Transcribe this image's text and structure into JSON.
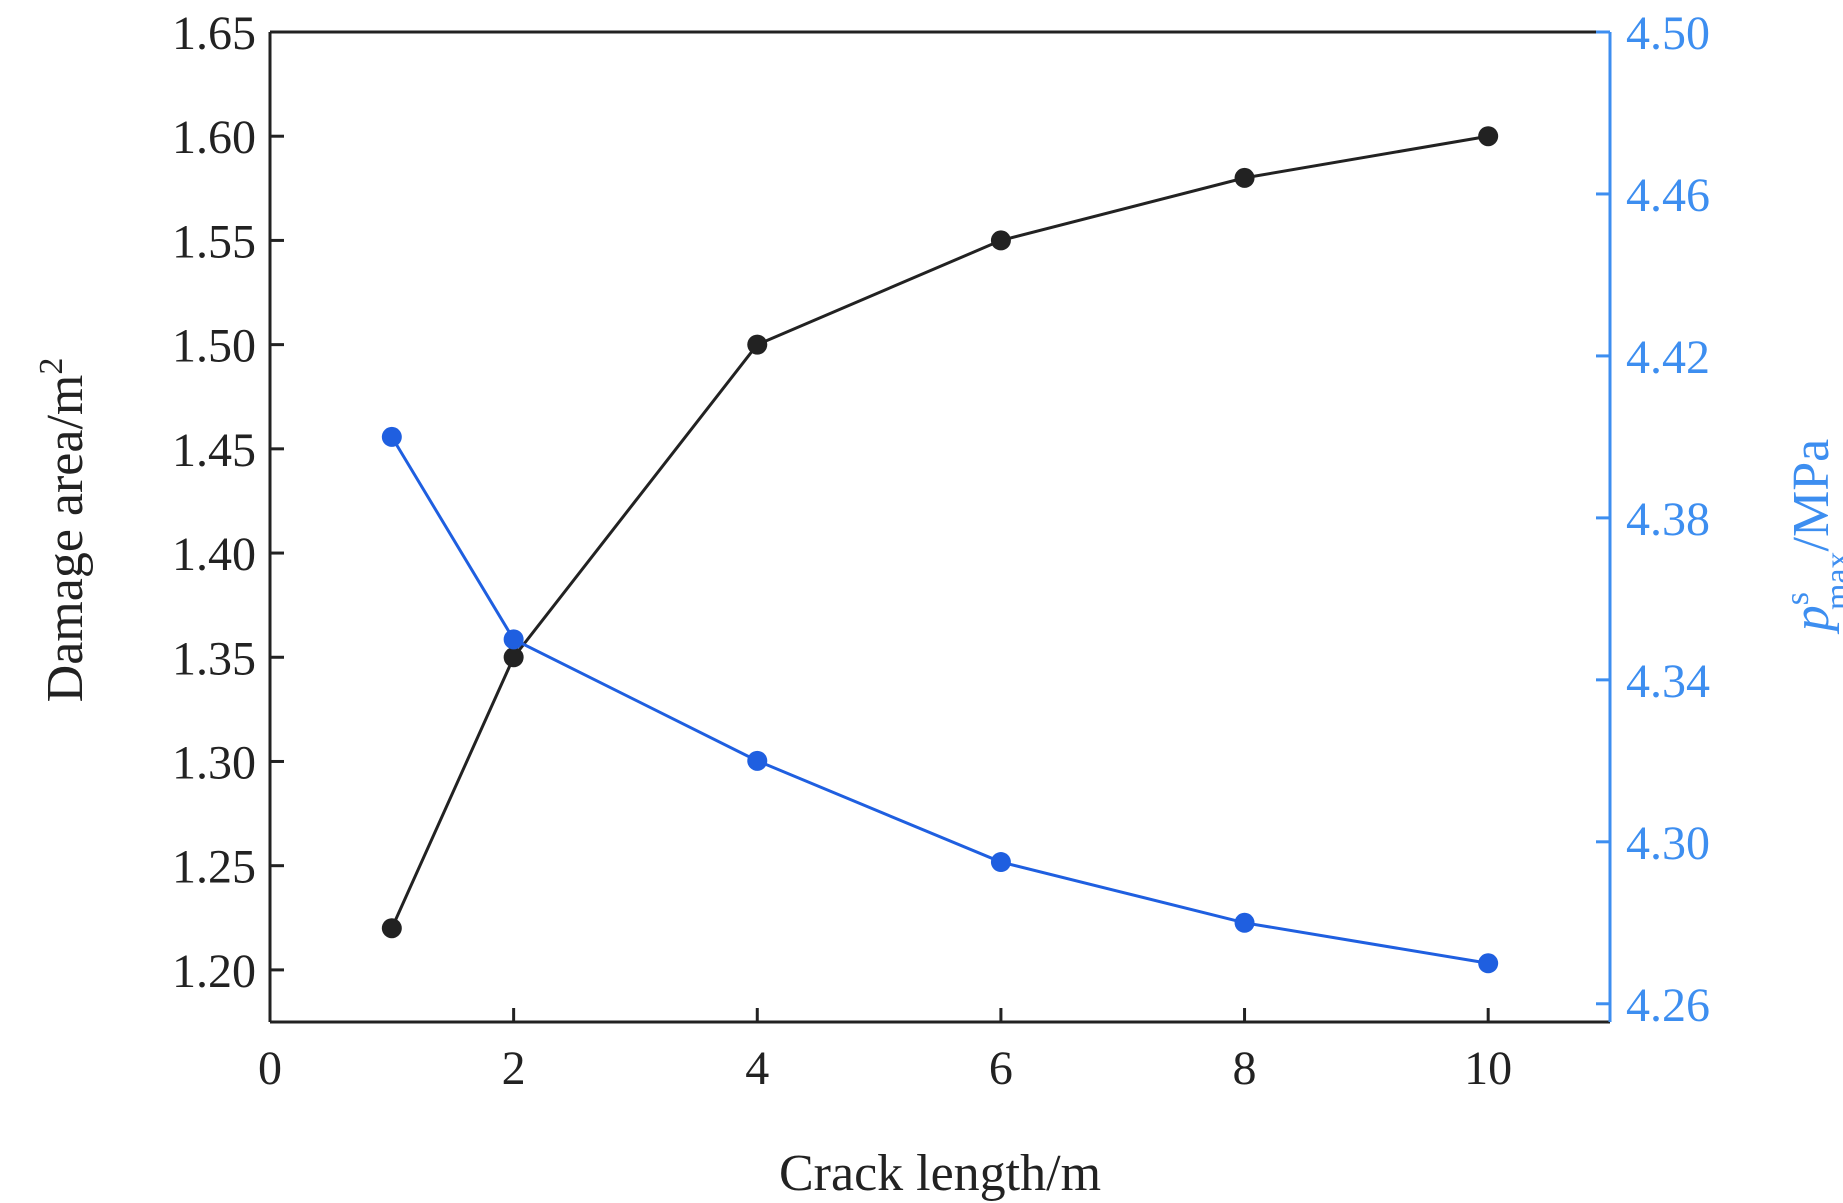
{
  "colors": {
    "left_series": "#222222",
    "right_series": "#1f5fe0",
    "right_axis": "#3d8ef0",
    "axis": "#222222"
  },
  "chart_data": {
    "type": "line",
    "xlabel": "Crack length/m",
    "ylabel": {
      "text": "Damage area/m",
      "superscript": "2"
    },
    "y2label": {
      "var": "p",
      "superscript": "s",
      "subscript": "max",
      "unit": "/MPa"
    },
    "xlim": [
      0,
      11
    ],
    "ylim": [
      1.175,
      1.65
    ],
    "y2lim": [
      4.2555,
      4.5
    ],
    "x_ticks": [
      "0",
      "2",
      "4",
      "6",
      "8",
      "10"
    ],
    "y_ticks": [
      "1.20",
      "1.25",
      "1.30",
      "1.35",
      "1.40",
      "1.45",
      "1.50",
      "1.55",
      "1.60",
      "1.65"
    ],
    "y2_ticks": [
      "4.26",
      "4.30",
      "4.34",
      "4.38",
      "4.42",
      "4.46",
      "4.50"
    ],
    "grid": false,
    "legend": "none",
    "series": [
      {
        "axis": "left",
        "x": [
          1,
          2,
          4,
          6,
          8,
          10
        ],
        "y": [
          1.22,
          1.35,
          1.5,
          1.55,
          1.58,
          1.6
        ]
      },
      {
        "axis": "right",
        "x": [
          1,
          2,
          4,
          6,
          8,
          10
        ],
        "y": [
          4.4,
          4.35,
          4.32,
          4.295,
          4.28,
          4.27
        ]
      }
    ]
  }
}
